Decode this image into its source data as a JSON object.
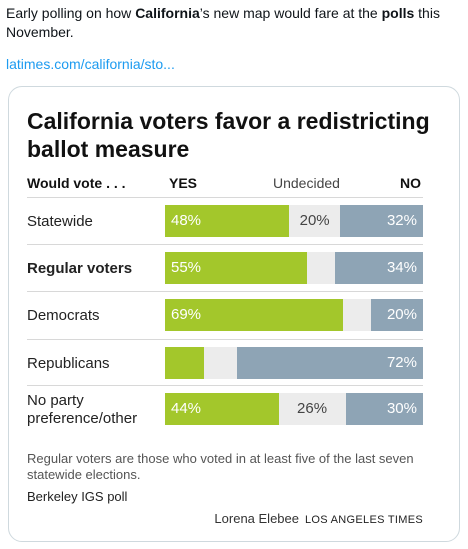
{
  "tweet": {
    "t1": "Early polling on how ",
    "t2": "California",
    "t3": "’s new map would fare at the ",
    "t4": "polls",
    "t5": " this November.",
    "link": "latimes.com/california/sto..."
  },
  "chart_data": {
    "type": "bar",
    "title": "California voters favor a redistricting ballot measure",
    "header": {
      "question": "Would vote . . .",
      "yes": "YES",
      "undecided": "Undecided",
      "no": "NO"
    },
    "categories": [
      "Statewide",
      "Regular voters",
      "Democrats",
      "Republicans",
      "No party preference/other"
    ],
    "series": [
      {
        "name": "YES",
        "values": [
          48,
          55,
          69,
          15,
          44
        ]
      },
      {
        "name": "Undecided",
        "values": [
          20,
          11,
          11,
          13,
          26
        ]
      },
      {
        "name": "NO",
        "values": [
          32,
          34,
          20,
          72,
          30
        ]
      }
    ],
    "labels": {
      "yes": [
        "48%",
        "55%",
        "69%",
        "",
        "44%"
      ],
      "undecided": [
        "20%",
        "",
        "",
        "",
        "26%"
      ],
      "no": [
        "32%",
        "34%",
        "20%",
        "72%",
        "30%"
      ]
    },
    "bold_category": "Regular voters",
    "colors": {
      "yes": "#a3c72b",
      "undecided": "#ececec",
      "no": "#8ea4b5"
    },
    "ylim": [
      0,
      100
    ],
    "footnote": "Regular voters are those who voted in at least five of the last seven statewide elections.",
    "source": "Berkeley IGS poll",
    "credit_author": "Lorena Elebee",
    "credit_org": "LOS ANGELES TIMES"
  }
}
